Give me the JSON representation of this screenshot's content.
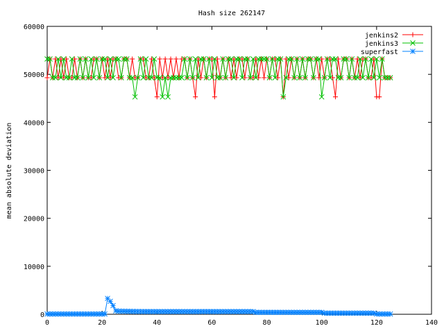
{
  "chart_data": {
    "type": "line",
    "title": "Hash size 262147",
    "xlabel": "",
    "ylabel": "mean absolute deviation",
    "xlim": [
      0,
      140
    ],
    "ylim": [
      0,
      60000
    ],
    "x_ticks": [
      0,
      20,
      40,
      60,
      80,
      100,
      120,
      140
    ],
    "y_ticks": [
      0,
      10000,
      20000,
      30000,
      40000,
      50000,
      60000
    ],
    "grid": false,
    "legend_position": "top-right",
    "x": [
      0,
      1,
      2,
      3,
      4,
      5,
      6,
      7,
      8,
      9,
      10,
      11,
      12,
      13,
      14,
      15,
      16,
      17,
      18,
      19,
      20,
      21,
      22,
      23,
      24,
      25,
      26,
      27,
      28,
      29,
      30,
      31,
      32,
      33,
      34,
      35,
      36,
      37,
      38,
      39,
      40,
      41,
      42,
      43,
      44,
      45,
      46,
      47,
      48,
      49,
      50,
      51,
      52,
      53,
      54,
      55,
      56,
      57,
      58,
      59,
      60,
      61,
      62,
      63,
      64,
      65,
      66,
      67,
      68,
      69,
      70,
      71,
      72,
      73,
      74,
      75,
      76,
      77,
      78,
      79,
      80,
      81,
      82,
      83,
      84,
      85,
      86,
      87,
      88,
      89,
      90,
      91,
      92,
      93,
      94,
      95,
      96,
      97,
      98,
      99,
      100,
      101,
      102,
      103,
      104,
      105,
      106,
      107,
      108,
      109,
      110,
      111,
      112,
      113,
      114,
      115,
      116,
      117,
      118,
      119,
      120,
      121,
      122,
      123,
      124,
      125
    ],
    "series": [
      {
        "name": "jenkins2",
        "color": "#ff0000",
        "marker": "plus",
        "values": [
          49300,
          53200,
          49300,
          53200,
          49300,
          53200,
          49300,
          53200,
          49300,
          49300,
          53200,
          49300,
          53200,
          49300,
          53200,
          49300,
          49300,
          53200,
          53200,
          49300,
          53200,
          49300,
          53200,
          49300,
          53200,
          53200,
          49300,
          49300,
          53200,
          53200,
          49300,
          53200,
          49300,
          49300,
          53200,
          53200,
          49300,
          49300,
          53200,
          49300,
          45300,
          53200,
          49300,
          53200,
          49300,
          53200,
          49300,
          53200,
          49300,
          53200,
          53200,
          49300,
          53200,
          49300,
          45300,
          53200,
          49300,
          53200,
          49300,
          53200,
          53200,
          45300,
          53200,
          49300,
          53200,
          49300,
          53200,
          49300,
          53200,
          49300,
          53200,
          53200,
          49300,
          53200,
          49300,
          49300,
          53200,
          49300,
          53200,
          49300,
          53200,
          49300,
          53200,
          53200,
          49300,
          53200,
          45300,
          53200,
          49300,
          53200,
          49300,
          53200,
          49300,
          53200,
          49300,
          53200,
          53200,
          49300,
          53200,
          49300,
          53200,
          49300,
          53200,
          53200,
          49300,
          45300,
          53200,
          49300,
          53200,
          53200,
          49300,
          53200,
          49300,
          53200,
          49300,
          53200,
          53200,
          49300,
          49300,
          53200,
          45300,
          45300,
          53200,
          49300,
          49300,
          49300
        ]
      },
      {
        "name": "jenkins3",
        "color": "#00c000",
        "marker": "cross",
        "values": [
          53200,
          53200,
          49300,
          49300,
          53200,
          49300,
          53200,
          49300,
          49300,
          53200,
          49300,
          49300,
          53200,
          49300,
          53200,
          49300,
          53200,
          49300,
          53200,
          49300,
          53200,
          53200,
          49300,
          53200,
          49300,
          53200,
          53200,
          49300,
          53200,
          53200,
          49300,
          49300,
          45300,
          49300,
          53200,
          49300,
          53200,
          49300,
          49300,
          53200,
          49300,
          49300,
          45300,
          49300,
          45300,
          49300,
          49300,
          49300,
          49300,
          49300,
          53200,
          49300,
          53200,
          49300,
          53200,
          49300,
          53200,
          53200,
          49300,
          53200,
          49300,
          53200,
          49300,
          49300,
          53200,
          49300,
          53200,
          53200,
          49300,
          53200,
          53200,
          49300,
          53200,
          53200,
          49300,
          53200,
          49300,
          53200,
          53200,
          53200,
          53200,
          49300,
          53200,
          49300,
          53200,
          53200,
          45300,
          49300,
          53200,
          53200,
          49300,
          53200,
          49300,
          53200,
          49300,
          53200,
          53200,
          49300,
          53200,
          53200,
          45300,
          49300,
          53200,
          49300,
          53200,
          53200,
          49300,
          49300,
          53200,
          53200,
          49300,
          53200,
          49300,
          49300,
          53200,
          49300,
          53200,
          49300,
          53200,
          49300,
          53200,
          49300,
          53200,
          49300,
          49300,
          49300
        ]
      },
      {
        "name": "superfast",
        "color": "#0080ff",
        "marker": "star",
        "values": [
          50,
          50,
          50,
          50,
          50,
          50,
          50,
          50,
          50,
          50,
          50,
          50,
          50,
          50,
          50,
          50,
          50,
          50,
          50,
          50,
          50,
          50,
          3300,
          2700,
          1800,
          700,
          650,
          640,
          630,
          620,
          610,
          600,
          590,
          580,
          570,
          560,
          560,
          560,
          560,
          560,
          560,
          560,
          560,
          560,
          560,
          560,
          560,
          560,
          560,
          560,
          560,
          560,
          560,
          560,
          560,
          560,
          560,
          560,
          560,
          560,
          560,
          560,
          560,
          560,
          560,
          560,
          560,
          560,
          560,
          560,
          560,
          560,
          560,
          560,
          560,
          560,
          400,
          400,
          400,
          400,
          400,
          400,
          400,
          400,
          400,
          400,
          400,
          400,
          400,
          400,
          400,
          400,
          400,
          400,
          400,
          400,
          400,
          400,
          400,
          400,
          400,
          230,
          230,
          230,
          230,
          230,
          230,
          230,
          230,
          230,
          230,
          230,
          230,
          230,
          230,
          230,
          230,
          230,
          230,
          230,
          50,
          50,
          50,
          50,
          50,
          50
        ]
      }
    ]
  }
}
